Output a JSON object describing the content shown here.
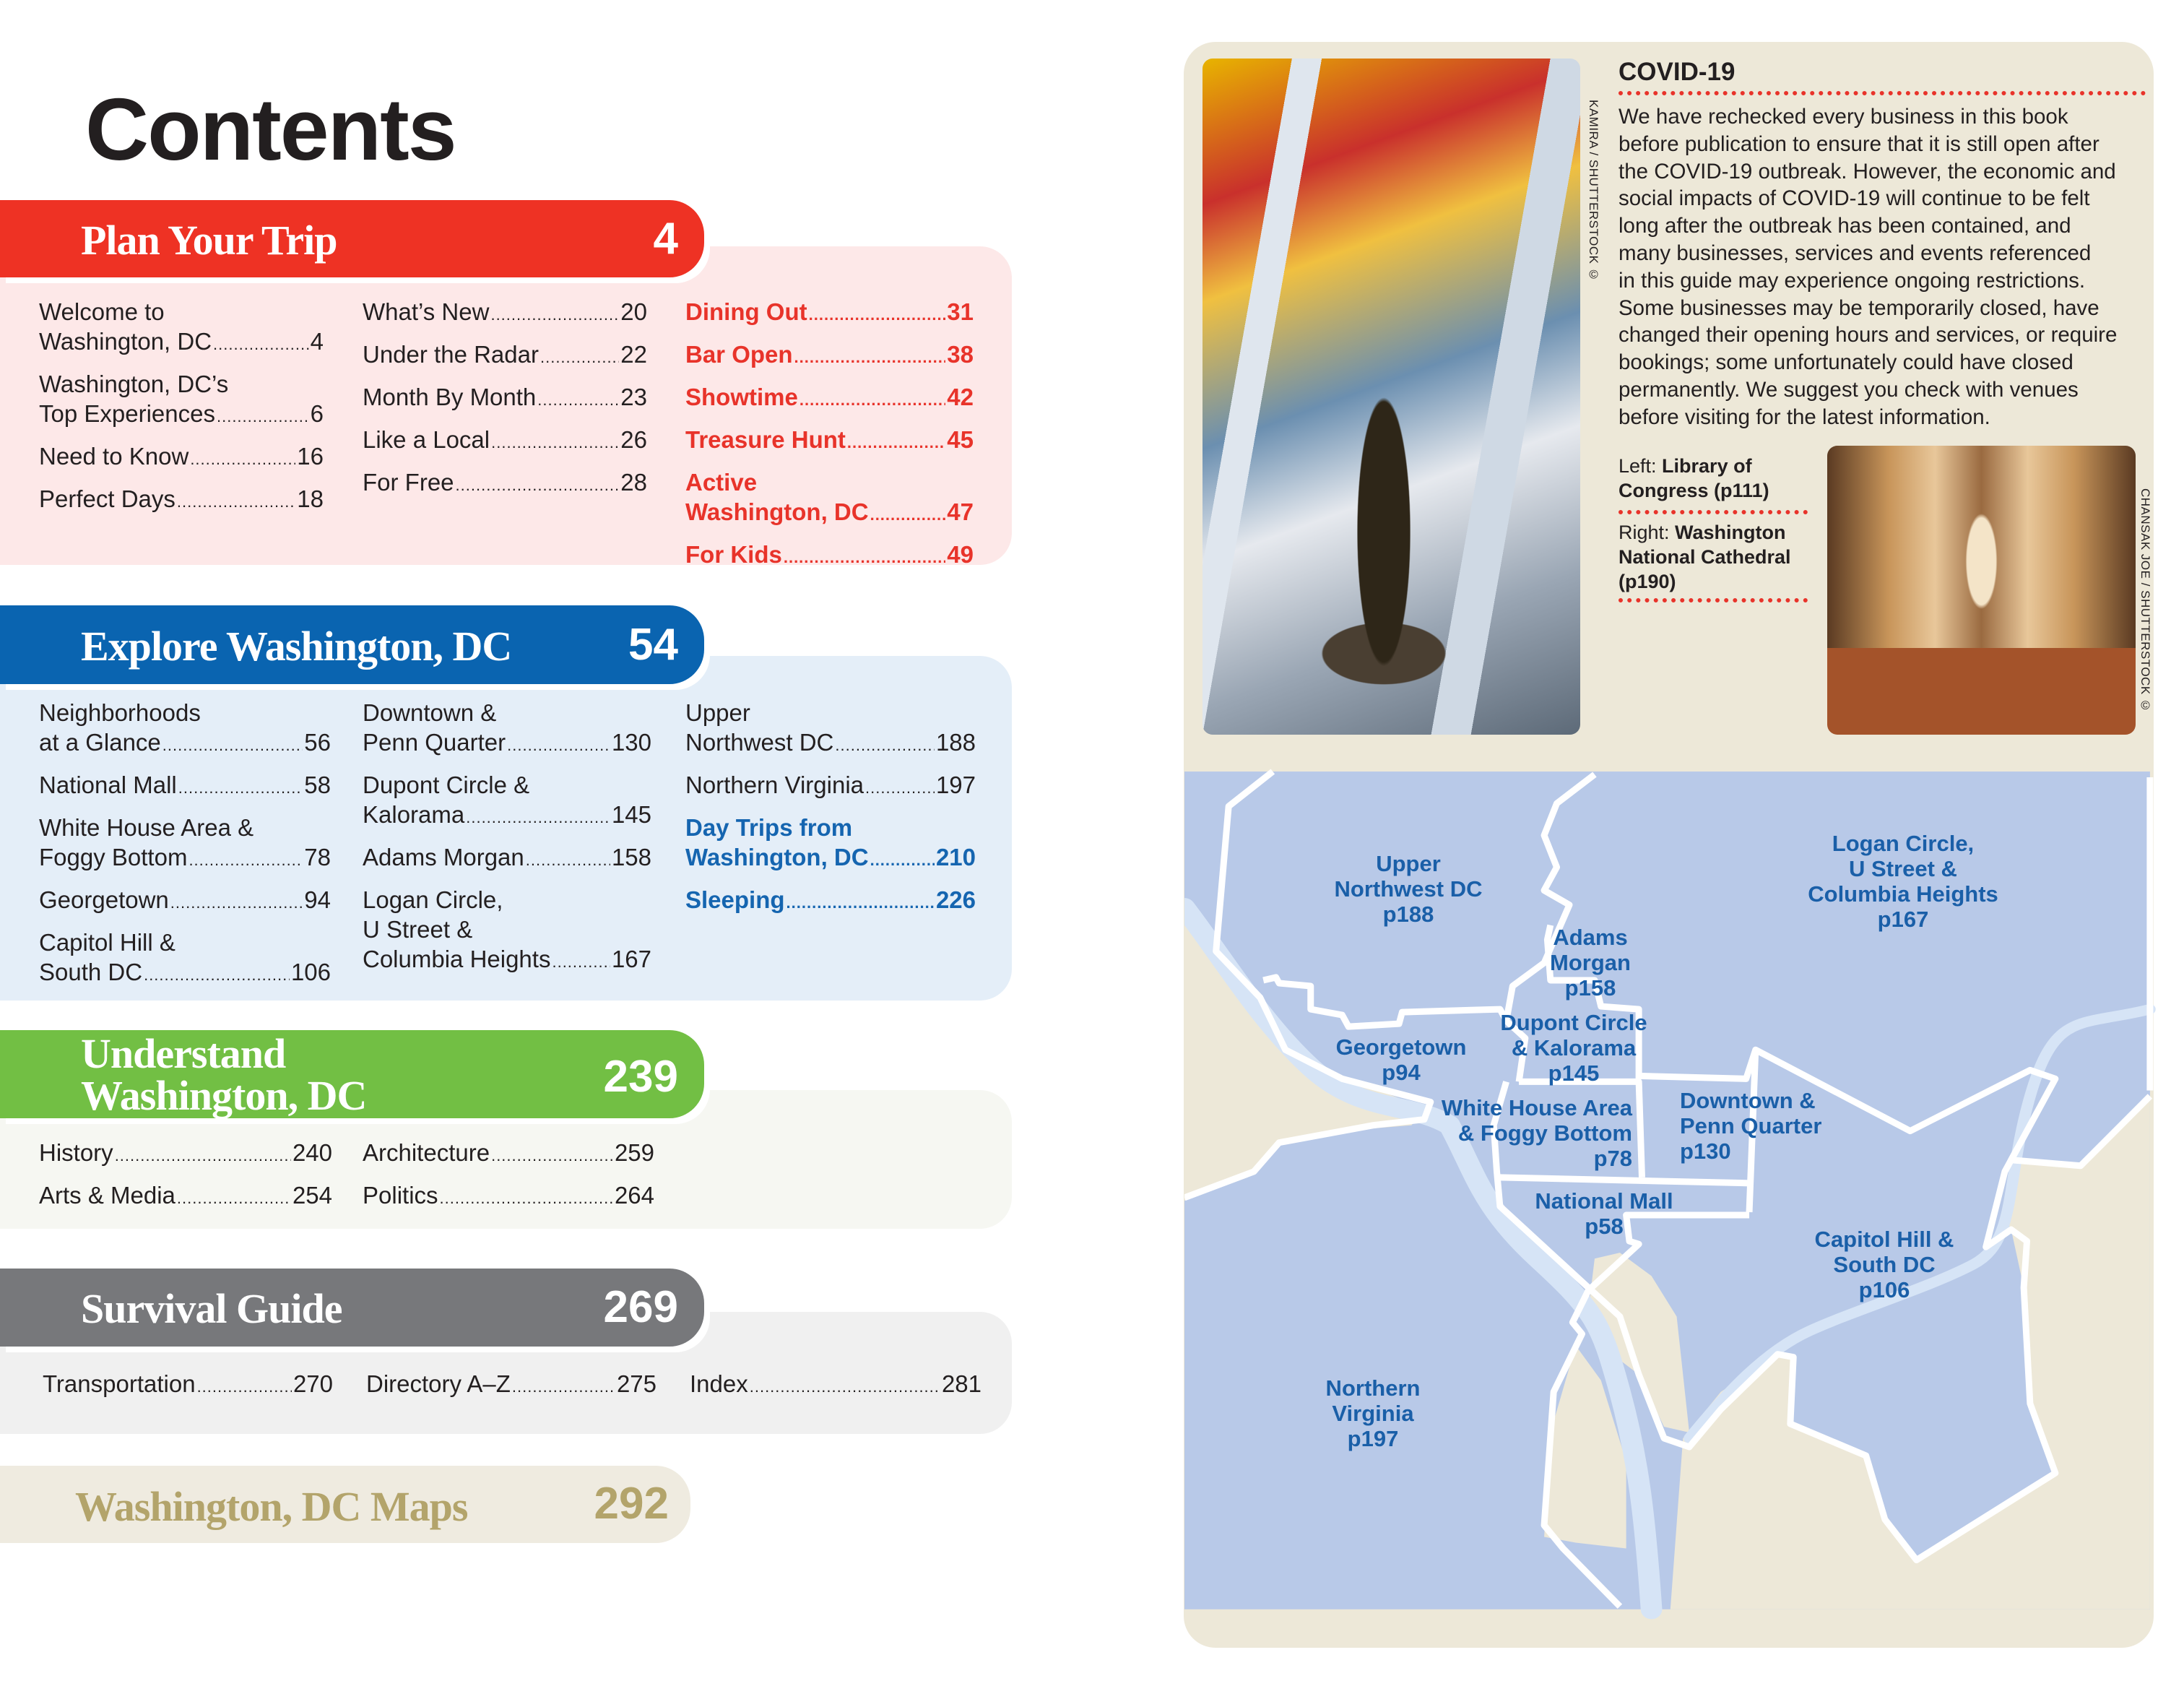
{
  "title": "Contents",
  "sections": {
    "plan": {
      "title": "Plan Your Trip",
      "page": "4",
      "color": "#ee3224",
      "panel_color": "#fde8e8",
      "columns": [
        [
          {
            "lines": [
              "Welcome to",
              "Washington, DC"
            ],
            "page": "4"
          },
          {
            "lines": [
              "Washington, DC’s",
              "Top Experiences"
            ],
            "page": "6"
          },
          {
            "lines": [
              "Need to Know"
            ],
            "page": "16"
          },
          {
            "lines": [
              "Perfect Days"
            ],
            "page": "18"
          }
        ],
        [
          {
            "lines": [
              "What’s New"
            ],
            "page": "20"
          },
          {
            "lines": [
              "Under the Radar"
            ],
            "page": "22"
          },
          {
            "lines": [
              "Month By Month"
            ],
            "page": "23"
          },
          {
            "lines": [
              "Like a Local"
            ],
            "page": "26"
          },
          {
            "lines": [
              "For Free"
            ],
            "page": "28"
          }
        ],
        [
          {
            "lines": [
              "Dining Out"
            ],
            "page": "31"
          },
          {
            "lines": [
              "Bar Open"
            ],
            "page": "38"
          },
          {
            "lines": [
              "Showtime"
            ],
            "page": "42"
          },
          {
            "lines": [
              "Treasure Hunt"
            ],
            "page": "45"
          },
          {
            "lines": [
              "Active",
              "Washington, DC"
            ],
            "page": "47"
          },
          {
            "lines": [
              "For Kids"
            ],
            "page": "49"
          }
        ]
      ]
    },
    "explore": {
      "title": "Explore Washington, DC",
      "page": "54",
      "color": "#0a64b0",
      "panel_color": "#e4eef8",
      "columns": [
        [
          {
            "lines": [
              "Neighborhoods",
              "at a Glance"
            ],
            "page": "56"
          },
          {
            "lines": [
              "National Mall"
            ],
            "page": "58"
          },
          {
            "lines": [
              "White House Area &",
              "Foggy Bottom"
            ],
            "page": "78"
          },
          {
            "lines": [
              "Georgetown"
            ],
            "page": "94"
          },
          {
            "lines": [
              "Capitol Hill &",
              "South DC"
            ],
            "page": "106"
          }
        ],
        [
          {
            "lines": [
              "Downtown &",
              "Penn Quarter"
            ],
            "page": "130"
          },
          {
            "lines": [
              "Dupont Circle  &",
              "Kalorama"
            ],
            "page": "145"
          },
          {
            "lines": [
              "Adams Morgan"
            ],
            "page": "158"
          },
          {
            "lines": [
              "Logan Circle,",
              "U Street &",
              "Columbia Heights"
            ],
            "page": "167"
          }
        ],
        [
          {
            "lines": [
              "Upper",
              "Northwest DC"
            ],
            "page": "188"
          },
          {
            "lines": [
              "Northern Virginia"
            ],
            "page": "197"
          },
          {
            "lines": [
              "Day Trips from",
              "Washington, DC"
            ],
            "page": "210"
          },
          {
            "lines": [
              "Sleeping"
            ],
            "page": "226"
          }
        ]
      ]
    },
    "understand": {
      "title_lines": [
        "Understand",
        "Washington, DC"
      ],
      "page": "239",
      "color": "#72bf44",
      "panel_color": "#f6f7f2",
      "columns": [
        [
          {
            "lines": [
              "History"
            ],
            "page": "240"
          },
          {
            "lines": [
              "Arts & Media"
            ],
            "page": "254"
          }
        ],
        [
          {
            "lines": [
              "Architecture"
            ],
            "page": "259"
          },
          {
            "lines": [
              "Politics"
            ],
            "page": "264"
          }
        ]
      ]
    },
    "survival": {
      "title": "Survival Guide",
      "page": "269",
      "color": "#77787b",
      "panel_color": "#f0f0f0",
      "columns": [
        [
          {
            "lines": [
              "Transportation"
            ],
            "page": "270"
          }
        ],
        [
          {
            "lines": [
              "Directory A–Z"
            ],
            "page": "275"
          }
        ],
        [
          {
            "lines": [
              "Index"
            ],
            "page": "281"
          }
        ]
      ]
    },
    "maps": {
      "title": "Washington, DC Maps",
      "page": "292",
      "color": "#b3a46b",
      "panel_color": "#efebe0"
    }
  },
  "covid": {
    "title": "COVID-19",
    "body_lines": [
      "We have rechecked every business in this book",
      "before publication to ensure that it is still open after",
      "the COVID-19 outbreak. However, the economic and",
      "social impacts of COVID-19 will continue to be felt",
      "long after the outbreak has been contained, and",
      "many businesses, services and events referenced",
      "in this guide may experience ongoing restrictions.",
      "Some businesses may be temporarily closed, have",
      "changed their opening hours and services, or require",
      "bookings; some unfortunately could have closed",
      "permanently. We suggest you check with venues",
      "before visiting for the latest information."
    ]
  },
  "captions": {
    "left_prefix": "Left: ",
    "left_text": "Library of Congress (p111)",
    "right_prefix": "Right: ",
    "right_text": "Washington National Cathedral (p190)"
  },
  "credits": {
    "left_photo": "KAMIRA / SHUTTERSTOCK ©",
    "right_photo": "CHANSAK JOE / SHUTTERSTOCK ©"
  },
  "map": {
    "label_color": "#1a5fa8",
    "region_color": "#b8c9e8",
    "water_color": "#d6e4f6",
    "labels": [
      {
        "name": "upper-northwest-dc",
        "lines": [
          "Upper",
          "Northwest DC",
          "p188"
        ]
      },
      {
        "name": "logan-circle",
        "lines": [
          "Logan Circle,",
          "U Street &",
          "Columbia Heights",
          "p167"
        ]
      },
      {
        "name": "adams-morgan",
        "lines": [
          "Adams",
          "Morgan",
          "p158"
        ]
      },
      {
        "name": "dupont-circle",
        "lines": [
          "Dupont Circle",
          "& Kalorama",
          "p145"
        ]
      },
      {
        "name": "georgetown",
        "lines": [
          "Georgetown",
          "p94"
        ]
      },
      {
        "name": "white-house-area",
        "lines": [
          "White House Area",
          "& Foggy Bottom",
          "p78"
        ]
      },
      {
        "name": "downtown",
        "lines": [
          "Downtown &",
          "Penn Quarter",
          "p130"
        ]
      },
      {
        "name": "national-mall",
        "lines": [
          "National Mall",
          "p58"
        ]
      },
      {
        "name": "capitol-hill",
        "lines": [
          "Capitol Hill &",
          "South DC",
          "p106"
        ]
      },
      {
        "name": "northern-virginia",
        "lines": [
          "Northern",
          "Virginia",
          "p197"
        ]
      }
    ]
  }
}
